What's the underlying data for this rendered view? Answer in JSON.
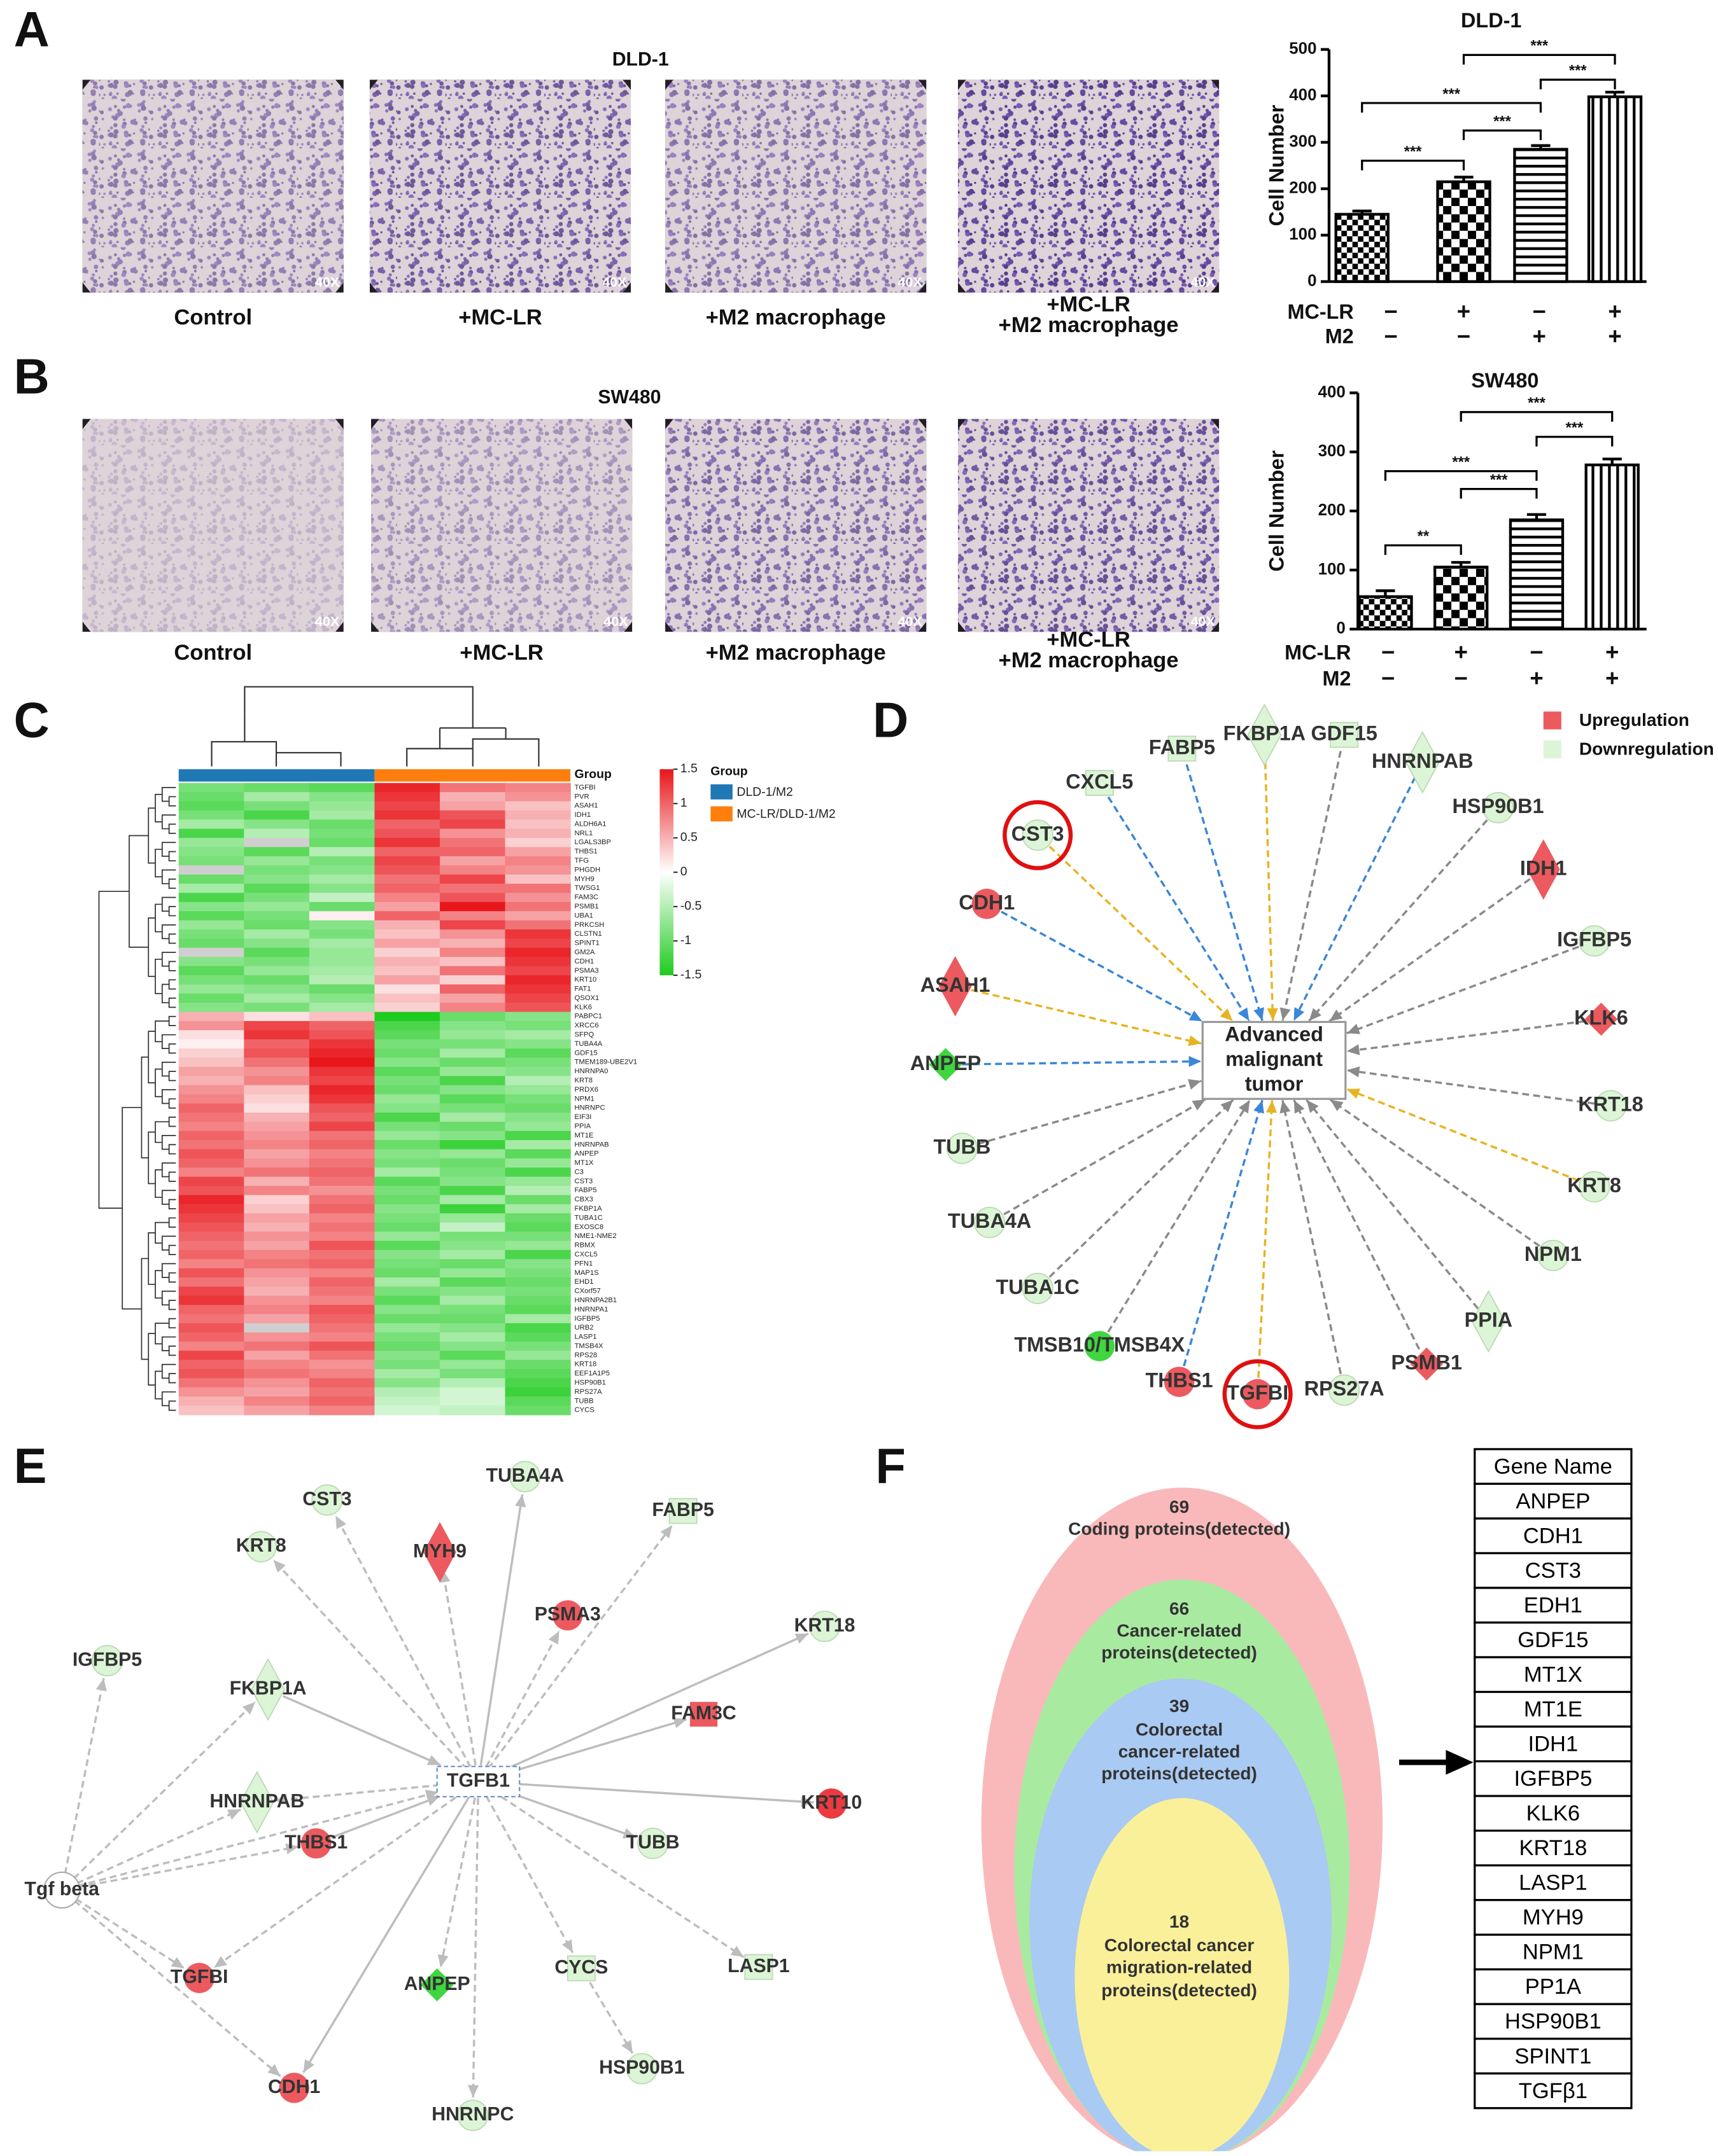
{
  "panel_labels": [
    "A",
    "B",
    "C",
    "D",
    "E",
    "F"
  ],
  "image_panels": [
    {
      "title": "DLD-1",
      "images": [
        {
          "caption": [
            "Control"
          ],
          "magnification": "40X"
        },
        {
          "caption": [
            "+MC-LR"
          ],
          "magnification": "40X"
        },
        {
          "caption": [
            "+M2 macrophage"
          ],
          "magnification": "40X"
        },
        {
          "caption": [
            "+MC-LR",
            "+M2 macrophage"
          ],
          "magnification": "40X"
        }
      ]
    },
    {
      "title": "SW480",
      "images": [
        {
          "caption": [
            "Control"
          ],
          "magnification": "40X"
        },
        {
          "caption": [
            "+MC-LR"
          ],
          "magnification": "40X"
        },
        {
          "caption": [
            "+M2 macrophage"
          ],
          "magnification": "40X"
        },
        {
          "caption": [
            "+MC-LR",
            "+M2 macrophage"
          ],
          "magnification": "40X"
        }
      ]
    }
  ],
  "chart_data": [
    {
      "type": "bar",
      "title": "DLD-1",
      "y_label": "Cell Number",
      "treatments": [
        {
          "name": "MC-LR",
          "marks": [
            "−",
            "+",
            "−",
            "+"
          ]
        },
        {
          "name": "M2",
          "marks": [
            "−",
            "−",
            "+",
            "+"
          ]
        }
      ],
      "values": [
        145,
        215,
        285,
        398
      ],
      "errors": [
        7,
        10,
        8,
        10
      ],
      "color": "#000000",
      "ylim": [
        0,
        500
      ],
      "yticks": [
        0,
        100,
        200,
        300,
        400,
        500
      ],
      "significance": [
        "***",
        "***",
        "***",
        "***",
        "***"
      ]
    },
    {
      "type": "bar",
      "title": "SW480",
      "y_label": "Cell Number",
      "treatments": [
        {
          "name": "MC-LR",
          "marks": [
            "−",
            "+",
            "−",
            "+"
          ]
        },
        {
          "name": "M2",
          "marks": [
            "−",
            "−",
            "+",
            "+"
          ]
        }
      ],
      "values": [
        55,
        105,
        185,
        278
      ],
      "errors": [
        10,
        8,
        9,
        10
      ],
      "color": "#000000",
      "ylim": [
        0,
        400
      ],
      "yticks": [
        0,
        100,
        200,
        300,
        400
      ],
      "significance": [
        "**",
        "***",
        "***",
        "***",
        "***"
      ]
    },
    {
      "type": "heatmap",
      "column_group_label": "Group",
      "legend_title": "Group",
      "groups": [
        {
          "name": "DLD-1/M2",
          "color": "#1f77b4"
        },
        {
          "name": "MC-LR/DLD-1/M2",
          "color": "#ff7f0e"
        }
      ],
      "zlim": [
        -1.5,
        1.5
      ],
      "zticks": [
        1.5,
        1,
        0.5,
        0,
        -0.5,
        -1,
        -1.5
      ],
      "low_color": "#1ecb1e",
      "high_color": "#e8161b",
      "missing_color": "#cfcfcf",
      "rows": [
        "TGFBI",
        "PVR",
        "ASAH1",
        "IDH1",
        "ALDH6A1",
        "NRL1",
        "LGALS3BP",
        "THBS1",
        "TFG",
        "PHGDH",
        "MYH9",
        "TWSG1",
        "FAM3C",
        "PSMB1",
        "UBA1",
        "PRKCSH",
        "CLSTN1",
        "SPINT1",
        "GM2A",
        "CDH1",
        "PSMA3",
        "KRT10",
        "FAT1",
        "QSOX1",
        "KLK6",
        "PABPC1",
        "XRCC6",
        "SFPQ",
        "TUBA4A",
        "GDF15",
        "TMEM189-UBE2V1",
        "HNRNPA0",
        "KRT8",
        "PRDX6",
        "NPM1",
        "HNRNPC",
        "EIF3I",
        "PPIA",
        "MT1E",
        "HNRNPAB",
        "ANPEP",
        "MT1X",
        "C3",
        "CST3",
        "FABP5",
        "CBX3",
        "FKBP1A",
        "TUBA1C",
        "EXOSC8",
        "NME1-NME2",
        "RBMX",
        "CXCL5",
        "PFN1",
        "MAP1S",
        "EHD1",
        "CXorf57",
        "HNRNPA2B1",
        "HNRNPA1",
        "IGFBP5",
        "URB2",
        "LASP1",
        "TMSB4X",
        "RPS28",
        "KRT18",
        "EEF1A1P5",
        "HSP90B1",
        "RPS27A",
        "TUBB",
        "CYCS"
      ],
      "values": [
        [
          -0.9,
          -1.0,
          -1.1,
          1.4,
          0.9,
          0.8
        ],
        [
          -1.0,
          -0.6,
          -0.8,
          1.3,
          0.5,
          0.7
        ],
        [
          -1.1,
          -0.9,
          -0.7,
          1.2,
          0.6,
          0.4
        ],
        [
          -0.9,
          -1.2,
          -0.6,
          1.3,
          1.1,
          0.5
        ],
        [
          -0.6,
          -0.8,
          -1.0,
          1.0,
          1.2,
          0.4
        ],
        [
          -1.2,
          -0.5,
          -0.9,
          1.1,
          0.7,
          0.5
        ],
        [
          -0.7,
          null,
          -1.0,
          1.3,
          0.9,
          0.3
        ],
        [
          -0.8,
          -1.1,
          -0.5,
          1.0,
          1.0,
          0.6
        ],
        [
          -0.9,
          -0.7,
          -0.9,
          1.2,
          0.6,
          0.8
        ],
        [
          null,
          -0.9,
          -0.8,
          1.1,
          0.8,
          0.7
        ],
        [
          -1.0,
          -0.8,
          -0.6,
          0.9,
          1.2,
          0.4
        ],
        [
          -0.6,
          -1.1,
          -0.8,
          1.0,
          0.9,
          0.9
        ],
        [
          -1.2,
          -0.9,
          -0.4,
          0.8,
          1.1,
          0.7
        ],
        [
          -0.8,
          -0.7,
          -1.0,
          0.6,
          1.5,
          0.9
        ],
        [
          -1.1,
          -0.9,
          0.1,
          1.0,
          0.8,
          0.6
        ],
        [
          -0.7,
          -1.0,
          -0.8,
          0.5,
          1.2,
          0.9
        ],
        [
          -0.9,
          -0.6,
          -0.9,
          0.4,
          0.7,
          1.3
        ],
        [
          -1.0,
          -0.8,
          -0.6,
          0.6,
          0.5,
          1.2
        ],
        [
          null,
          -1.1,
          -0.7,
          0.3,
          0.8,
          1.4
        ],
        [
          -0.8,
          -0.9,
          -0.7,
          0.5,
          0.4,
          1.3
        ],
        [
          -1.1,
          -0.7,
          -0.6,
          0.4,
          0.9,
          1.2
        ],
        [
          -0.9,
          -1.0,
          -0.5,
          0.6,
          0.3,
          1.4
        ],
        [
          -0.7,
          -0.8,
          -1.0,
          0.2,
          1.0,
          1.3
        ],
        [
          -1.0,
          -0.6,
          -0.8,
          0.4,
          0.6,
          1.2
        ],
        [
          -0.8,
          -0.9,
          -0.6,
          0.3,
          0.8,
          1.1
        ],
        [
          0.5,
          0.2,
          0.4,
          -1.5,
          -1.0,
          -0.8
        ],
        [
          0.7,
          1.2,
          1.0,
          -1.2,
          -0.8,
          -0.9
        ],
        [
          0.2,
          1.3,
          1.1,
          -1.1,
          -0.7,
          -0.6
        ],
        [
          0.1,
          1.0,
          1.3,
          -0.9,
          -0.9,
          -0.8
        ],
        [
          0.3,
          1.1,
          1.4,
          -1.0,
          -0.6,
          -1.1
        ],
        [
          0.4,
          0.9,
          1.5,
          -0.8,
          -1.0,
          -0.9
        ],
        [
          0.6,
          0.7,
          1.3,
          -1.1,
          -0.7,
          -0.8
        ],
        [
          0.5,
          0.8,
          1.2,
          -0.9,
          -1.2,
          -0.5
        ],
        [
          0.7,
          0.4,
          1.4,
          -1.0,
          -0.8,
          -0.7
        ],
        [
          0.8,
          0.3,
          1.3,
          -0.7,
          -1.1,
          -0.9
        ],
        [
          1.0,
          0.2,
          1.1,
          -0.8,
          -0.9,
          -1.0
        ],
        [
          0.9,
          0.5,
          1.0,
          -1.2,
          -0.6,
          -0.8
        ],
        [
          0.8,
          0.6,
          1.2,
          -0.9,
          -1.0,
          -0.7
        ],
        [
          1.0,
          0.7,
          0.9,
          -0.7,
          -0.8,
          -1.2
        ],
        [
          0.9,
          0.8,
          1.0,
          -1.0,
          -1.3,
          -0.6
        ],
        [
          1.1,
          0.6,
          0.8,
          -0.8,
          -0.7,
          -1.1
        ],
        [
          1.0,
          0.7,
          0.9,
          -0.9,
          -1.0,
          -0.7
        ],
        [
          0.8,
          0.9,
          1.0,
          -0.6,
          -0.9,
          -1.2
        ],
        [
          1.2,
          0.5,
          0.9,
          -1.1,
          -0.8,
          -0.7
        ],
        [
          1.1,
          0.8,
          0.7,
          -0.9,
          -1.2,
          -0.5
        ],
        [
          1.4,
          0.3,
          0.9,
          -1.0,
          -0.6,
          -1.0
        ],
        [
          1.3,
          0.4,
          1.0,
          -0.8,
          -1.3,
          -0.6
        ],
        [
          1.2,
          0.6,
          0.8,
          -0.9,
          -0.7,
          -1.0
        ],
        [
          1.1,
          0.5,
          0.9,
          -1.0,
          -0.4,
          -1.1
        ],
        [
          1.0,
          0.7,
          0.8,
          -0.7,
          -0.9,
          -0.9
        ],
        [
          0.9,
          0.6,
          1.1,
          -1.1,
          -0.8,
          -0.7
        ],
        [
          1.0,
          0.8,
          0.9,
          -0.8,
          -0.6,
          -1.2
        ],
        [
          0.8,
          0.9,
          1.0,
          -0.9,
          -1.0,
          -0.8
        ],
        [
          1.1,
          0.7,
          0.8,
          -1.0,
          -0.7,
          -0.9
        ],
        [
          0.9,
          0.6,
          1.0,
          -0.6,
          -1.1,
          -1.0
        ],
        [
          1.2,
          0.5,
          0.9,
          -0.9,
          -0.8,
          -0.9
        ],
        [
          1.3,
          0.7,
          0.8,
          -1.1,
          -0.6,
          -1.0
        ],
        [
          1.0,
          0.8,
          1.1,
          -0.8,
          -0.9,
          -1.1
        ],
        [
          0.9,
          0.6,
          1.0,
          -1.0,
          -1.0,
          -0.6
        ],
        [
          1.1,
          null,
          0.9,
          -0.7,
          -0.8,
          -1.2
        ],
        [
          1.0,
          0.7,
          0.8,
          -0.9,
          -0.6,
          -1.1
        ],
        [
          0.8,
          0.9,
          1.1,
          -1.0,
          -0.8,
          -0.9
        ],
        [
          1.2,
          0.6,
          0.9,
          -0.8,
          -1.1,
          -0.7
        ],
        [
          1.0,
          0.8,
          0.7,
          -0.9,
          -0.7,
          -1.0
        ],
        [
          1.1,
          0.9,
          0.8,
          -0.6,
          -0.9,
          -1.1
        ],
        [
          0.9,
          0.7,
          1.0,
          -0.8,
          -0.5,
          -1.2
        ],
        [
          0.7,
          0.6,
          0.9,
          -0.5,
          -0.3,
          -1.3
        ],
        [
          0.5,
          0.8,
          1.0,
          -0.4,
          -0.3,
          -1.1
        ],
        [
          0.4,
          0.6,
          0.8,
          -0.3,
          -0.4,
          -1.0
        ]
      ]
    }
  ],
  "network_d": {
    "center": [
      "Advanced",
      "malignant",
      "tumor"
    ],
    "legend": [
      {
        "label": "Upregulation",
        "color": "#ec5a60"
      },
      {
        "label": "Downregulation",
        "color": "#dcf5d6"
      }
    ],
    "nodes": [
      {
        "label": "FABP5",
        "shape": "square",
        "color": "#dcf5d6",
        "edge_color": "#3a86d8"
      },
      {
        "label": "FKBP1A",
        "shape": "diamond",
        "color": "#dcf5d6",
        "edge_color": "#e6b422"
      },
      {
        "label": "GDF15",
        "shape": "square",
        "color": "#dcf5d6",
        "edge_color": "#8a8a8a"
      },
      {
        "label": "HNRNPAB",
        "shape": "diamond",
        "color": "#dcf5d6",
        "edge_color": "#3a86d8"
      },
      {
        "label": "CXCL5",
        "shape": "square",
        "color": "#dcf5d6",
        "edge_color": "#3a86d8"
      },
      {
        "label": "HSP90B1",
        "shape": "circle",
        "color": "#dcf5d6",
        "edge_color": "#8a8a8a"
      },
      {
        "label": "CST3",
        "shape": "circle",
        "color": "#dcf5d6",
        "edge_color": "#e6b422",
        "highlight": true
      },
      {
        "label": "IDH1",
        "shape": "diamond",
        "color": "#ec5a60",
        "edge_color": "#8a8a8a"
      },
      {
        "label": "CDH1",
        "shape": "circle",
        "color": "#ec5a60",
        "edge_color": "#3a86d8"
      },
      {
        "label": "IGFBP5",
        "shape": "circle",
        "color": "#dcf5d6",
        "edge_color": "#8a8a8a"
      },
      {
        "label": "ASAH1",
        "shape": "diamond",
        "color": "#ec5a60",
        "edge_color": "#e6b422"
      },
      {
        "label": "KLK6",
        "shape": "diamond",
        "color": "#ec5a60",
        "edge_color": "#8a8a8a"
      },
      {
        "label": "ANPEP",
        "shape": "diamond",
        "color": "#3fd63f",
        "edge_color": "#3a86d8"
      },
      {
        "label": "KRT18",
        "shape": "circle",
        "color": "#dcf5d6",
        "edge_color": "#8a8a8a"
      },
      {
        "label": "TUBB",
        "shape": "circle",
        "color": "#dcf5d6",
        "edge_color": "#8a8a8a"
      },
      {
        "label": "KRT8",
        "shape": "circle",
        "color": "#dcf5d6",
        "edge_color": "#e6b422"
      },
      {
        "label": "TUBA4A",
        "shape": "circle",
        "color": "#dcf5d6",
        "edge_color": "#8a8a8a"
      },
      {
        "label": "NPM1",
        "shape": "circle",
        "color": "#dcf5d6",
        "edge_color": "#8a8a8a"
      },
      {
        "label": "TUBA1C",
        "shape": "circle",
        "color": "#dcf5d6",
        "edge_color": "#8a8a8a"
      },
      {
        "label": "PPIA",
        "shape": "diamond",
        "color": "#dcf5d6",
        "edge_color": "#8a8a8a"
      },
      {
        "label": "TMSB10/TMSB4X",
        "shape": "circle",
        "color": "#3fd63f",
        "edge_color": "#8a8a8a"
      },
      {
        "label": "PSMB1",
        "shape": "diamond",
        "color": "#ec5a60",
        "edge_color": "#8a8a8a"
      },
      {
        "label": "THBS1",
        "shape": "circle",
        "color": "#ec5a60",
        "edge_color": "#3a86d8"
      },
      {
        "label": "TGFBI",
        "shape": "circle",
        "color": "#ec5a60",
        "edge_color": "#e6b422",
        "highlight": true
      },
      {
        "label": "RPS27A",
        "shape": "circle",
        "color": "#dcf5d6",
        "edge_color": "#8a8a8a"
      }
    ]
  },
  "network_e": {
    "center": "TGFB1",
    "source": "Tgf beta",
    "nodes": [
      {
        "label": "CST3",
        "shape": "circle",
        "color": "#dcf5d6"
      },
      {
        "label": "TUBA4A",
        "shape": "circle",
        "color": "#dcf5d6"
      },
      {
        "label": "FABP5",
        "shape": "square",
        "color": "#dcf5d6"
      },
      {
        "label": "KRT8",
        "shape": "circle",
        "color": "#dcf5d6"
      },
      {
        "label": "MYH9",
        "shape": "diamond",
        "color": "#ec5a60"
      },
      {
        "label": "PSMA3",
        "shape": "circle",
        "color": "#ec5a60"
      },
      {
        "label": "KRT18",
        "shape": "circle",
        "color": "#dcf5d6"
      },
      {
        "label": "IGFBP5",
        "shape": "circle",
        "color": "#dcf5d6"
      },
      {
        "label": "FKBP1A",
        "shape": "diamond",
        "color": "#dcf5d6"
      },
      {
        "label": "FAM3C",
        "shape": "square",
        "color": "#ec5a60"
      },
      {
        "label": "HNRNPAB",
        "shape": "diamond",
        "color": "#dcf5d6"
      },
      {
        "label": "KRT10",
        "shape": "circle",
        "color": "#ec3a40"
      },
      {
        "label": "THBS1",
        "shape": "circle",
        "color": "#ec5a60"
      },
      {
        "label": "TUBB",
        "shape": "circle",
        "color": "#dcf5d6"
      },
      {
        "label": "TGFBI",
        "shape": "circle",
        "color": "#ec5a60"
      },
      {
        "label": "ANPEP",
        "shape": "diamond",
        "color": "#3fd63f"
      },
      {
        "label": "CYCS",
        "shape": "square",
        "color": "#dcf5d6"
      },
      {
        "label": "LASP1",
        "shape": "square",
        "color": "#dcf5d6"
      },
      {
        "label": "HSP90B1",
        "shape": "circle",
        "color": "#dcf5d6"
      },
      {
        "label": "CDH1",
        "shape": "circle",
        "color": "#ec5a60"
      },
      {
        "label": "HNRNPC",
        "shape": "circle",
        "color": "#dcf5d6"
      }
    ]
  },
  "panel_f": {
    "sets": [
      {
        "count": "69",
        "lines": [
          "Coding proteins(detected)"
        ],
        "color": "#f9b9ba"
      },
      {
        "count": "66",
        "lines": [
          "Cancer-related",
          "proteins(detected)"
        ],
        "color": "#a9eaa1"
      },
      {
        "count": "39",
        "lines": [
          "Colorectal",
          "cancer-related",
          "proteins(detected)"
        ],
        "color": "#a9caf2"
      },
      {
        "count": "18",
        "lines": [
          "Colorectal cancer",
          "migration-related",
          "proteins(detected)"
        ],
        "color": "#fbf09a"
      }
    ],
    "table": {
      "header": "Gene Name",
      "rows": [
        "ANPEP",
        "CDH1",
        "CST3",
        "EDH1",
        "GDF15",
        "MT1X",
        "MT1E",
        "IDH1",
        "IGFBP5",
        "KLK6",
        "KRT18",
        "LASP1",
        "MYH9",
        "NPM1",
        "PP1A",
        "HSP90B1",
        "SPINT1",
        "TGFβ1"
      ]
    }
  }
}
